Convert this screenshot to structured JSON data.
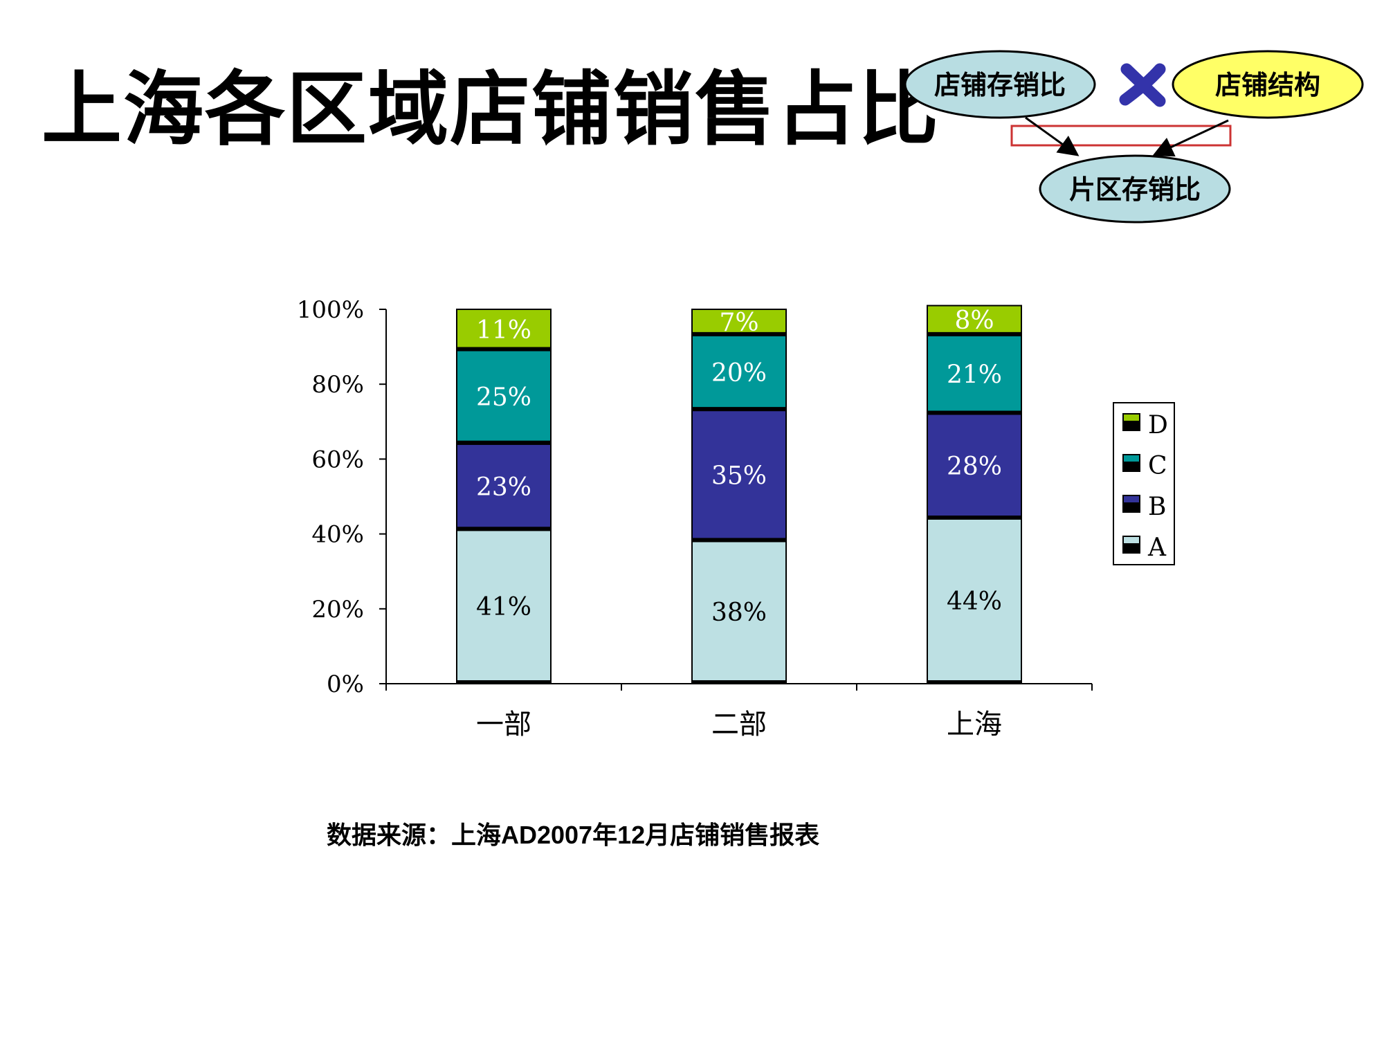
{
  "page": {
    "title": "上海各区域店铺销售占比",
    "source_note": "数据来源：上海AD2007年12月店铺销售报表"
  },
  "diagram": {
    "left_ellipse": "店铺存销比",
    "right_ellipse": "店铺结构",
    "bottom_ellipse": "片区存销比",
    "operator_icon": "multiply-icon",
    "colors": {
      "blue_fill": "#b8dde2",
      "yellow_fill": "#ffff66",
      "operator": "#3333aa",
      "box_border": "#cc3333"
    }
  },
  "chart_data": {
    "type": "bar",
    "stacked": true,
    "percent": true,
    "categories": [
      "一部",
      "二部",
      "上海"
    ],
    "series": [
      {
        "name": "A",
        "values": [
          41,
          38,
          44
        ],
        "labels": [
          "41%",
          "38%",
          "44%"
        ],
        "color": "#bde0e3",
        "label_color": "#000000"
      },
      {
        "name": "B",
        "values": [
          23,
          35,
          28
        ],
        "labels": [
          "23%",
          "35%",
          "28%"
        ],
        "color": "#333399",
        "label_color": "#ffffff"
      },
      {
        "name": "C",
        "values": [
          25,
          20,
          21
        ],
        "labels": [
          "25%",
          "20%",
          "21%"
        ],
        "color": "#009999",
        "label_color": "#ffffff"
      },
      {
        "name": "D",
        "values": [
          11,
          7,
          8
        ],
        "labels": [
          "11%",
          "7%",
          "8%"
        ],
        "color": "#99cc00",
        "label_color": "#ffffff"
      }
    ],
    "y_ticks": [
      "0%",
      "20%",
      "40%",
      "60%",
      "80%",
      "100%"
    ],
    "ylim": [
      0,
      100
    ],
    "grid": false,
    "legend_position": "right",
    "legend_order": [
      "D",
      "C",
      "B",
      "A"
    ]
  }
}
